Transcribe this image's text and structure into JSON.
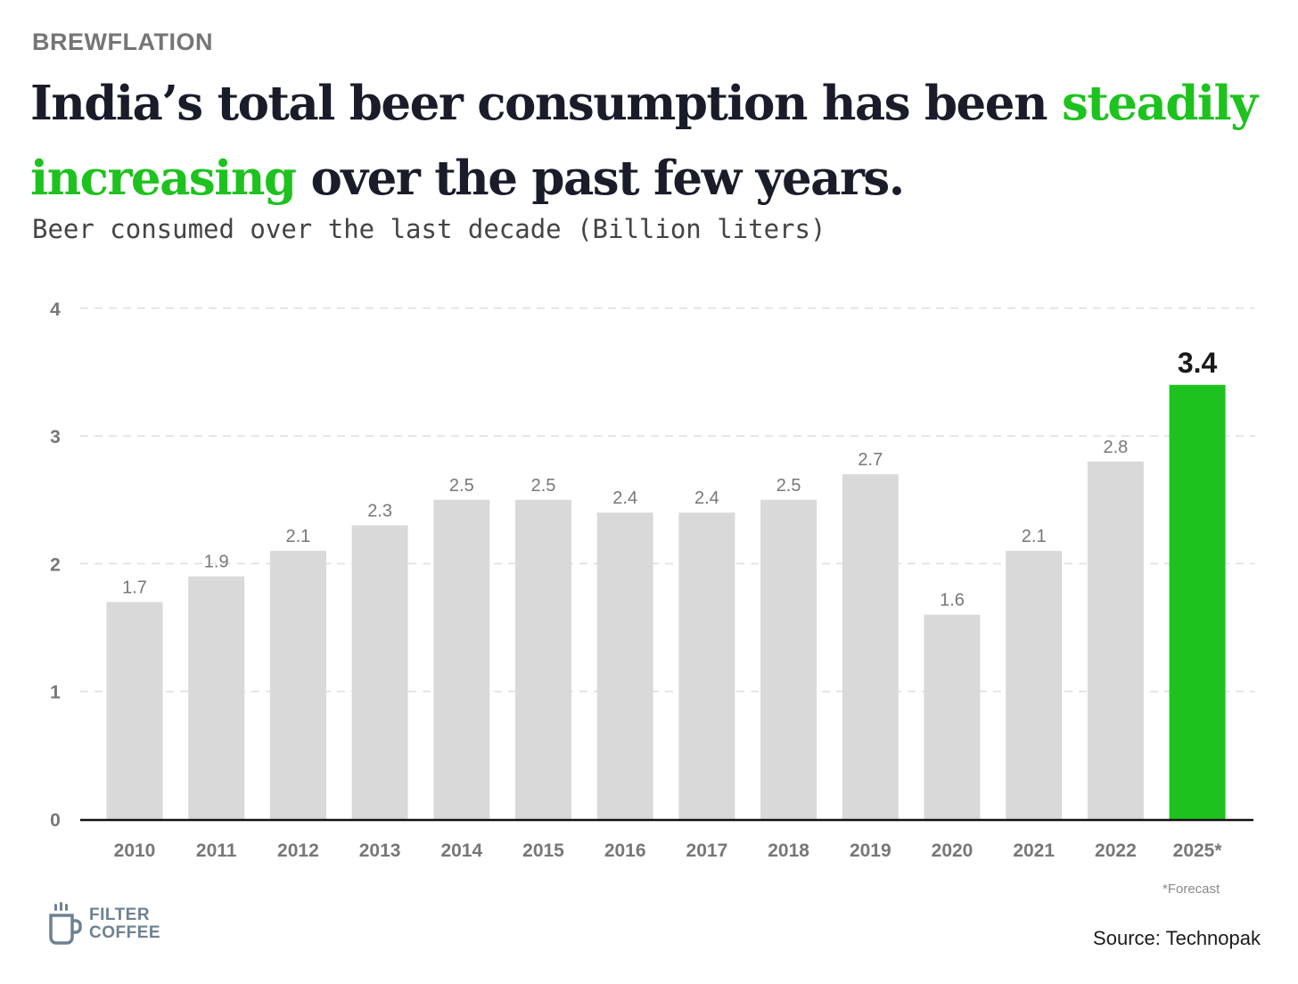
{
  "header": {
    "kicker": "BREWFLATION",
    "headline_part1": "India’s total beer consumption has been ",
    "headline_highlight1": "steadily",
    "headline_highlight2": "increasing",
    "headline_part2": " over the past few years.",
    "subtitle": "Beer consumed over the last decade (Billion liters)"
  },
  "colors": {
    "bar": "#d9d9d9",
    "highlight_bar": "#1ec21e",
    "headline_accent": "#1ec21e",
    "grid": "#dddddd",
    "axis": "#111111"
  },
  "chart_data": {
    "type": "bar",
    "categories": [
      "2010",
      "2011",
      "2012",
      "2013",
      "2014",
      "2015",
      "2016",
      "2017",
      "2018",
      "2019",
      "2020",
      "2021",
      "2022",
      "2025*"
    ],
    "values": [
      1.7,
      1.9,
      2.1,
      2.3,
      2.5,
      2.5,
      2.4,
      2.4,
      2.5,
      2.7,
      1.6,
      2.1,
      2.8,
      3.4
    ],
    "labels": [
      "1.7",
      "1.9",
      "2.1",
      "2.3",
      "2.5",
      "2.5",
      "2.4",
      "2.4",
      "2.5",
      "2.7",
      "1.6",
      "2.1",
      "2.8",
      "3.4"
    ],
    "highlight_index": 13,
    "ylim": [
      0,
      4
    ],
    "yticks": [
      "0",
      "1",
      "2",
      "3",
      "4"
    ],
    "grid": true,
    "title": "",
    "xlabel": "",
    "ylabel": ""
  },
  "footnote": "*Forecast",
  "source": "Source: Technopak",
  "logo": {
    "line1": "FILTER",
    "line2": "COFFEE",
    "icon": "coffee-mug-icon"
  }
}
